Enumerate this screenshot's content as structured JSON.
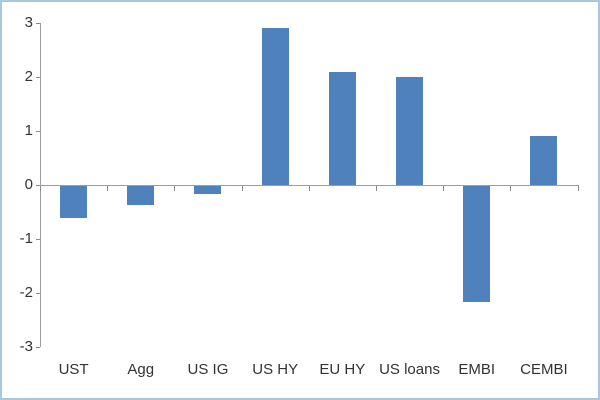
{
  "chart_data": {
    "type": "bar",
    "title": "",
    "xlabel": "",
    "ylabel": "",
    "categories": [
      "UST",
      "Agg",
      "US IG",
      "US HY",
      "EU HY",
      "US loans",
      "EMBI",
      "CEMBI"
    ],
    "values": [
      -0.6,
      -0.35,
      -0.15,
      2.9,
      2.1,
      2.0,
      -2.15,
      0.9
    ],
    "ylim": [
      -3,
      3
    ],
    "ytick_interval": 1,
    "yticks": [
      3,
      2,
      1,
      0,
      -1,
      -2,
      -3
    ],
    "grid": false,
    "legend": "none",
    "colors": {
      "bar_fill": "#4f81bd",
      "axis_line": "#9d9d9d",
      "tick_mark": "#8a8a8a",
      "label_text": "#333333",
      "frame_border": "#a9c6e2",
      "background": "#ffffff"
    }
  }
}
